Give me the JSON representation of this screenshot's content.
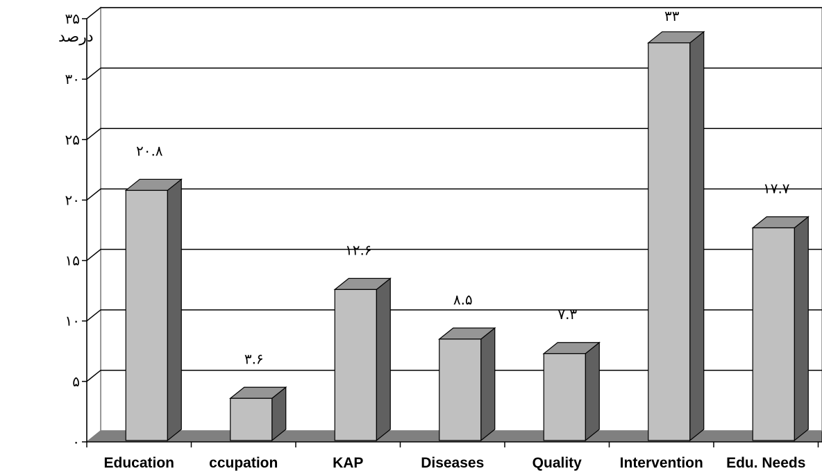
{
  "chart_data": {
    "type": "bar",
    "style": "3d",
    "title": "",
    "xlabel": "",
    "ylabel": "درصد",
    "ylim": [
      0,
      35
    ],
    "y_ticks": [
      0,
      5,
      10,
      15,
      20,
      25,
      30,
      35
    ],
    "y_tick_labels": [
      "۰",
      "۵",
      "۱۰",
      "۱۵",
      "۲۰",
      "۲۵",
      "۳۰",
      "۳۵"
    ],
    "grid": true,
    "categories": [
      "Education",
      "ccupation",
      "KAP",
      "Diseases",
      "Quality",
      "Intervention",
      "Edu. Needs"
    ],
    "values": [
      20.8,
      3.6,
      12.6,
      8.5,
      7.3,
      33,
      17.7
    ],
    "data_labels": [
      "۲۰.۸",
      "۳.۶",
      "۱۲.۶",
      "۸.۵",
      "۷.۳",
      "۳۳",
      "۱۷.۷"
    ],
    "colors": {
      "bar_front": "#c0c0c0",
      "bar_top": "#969696",
      "bar_side": "#606060",
      "floor": "#808080",
      "wall": "#ffffff",
      "grid": "#000000"
    }
  }
}
